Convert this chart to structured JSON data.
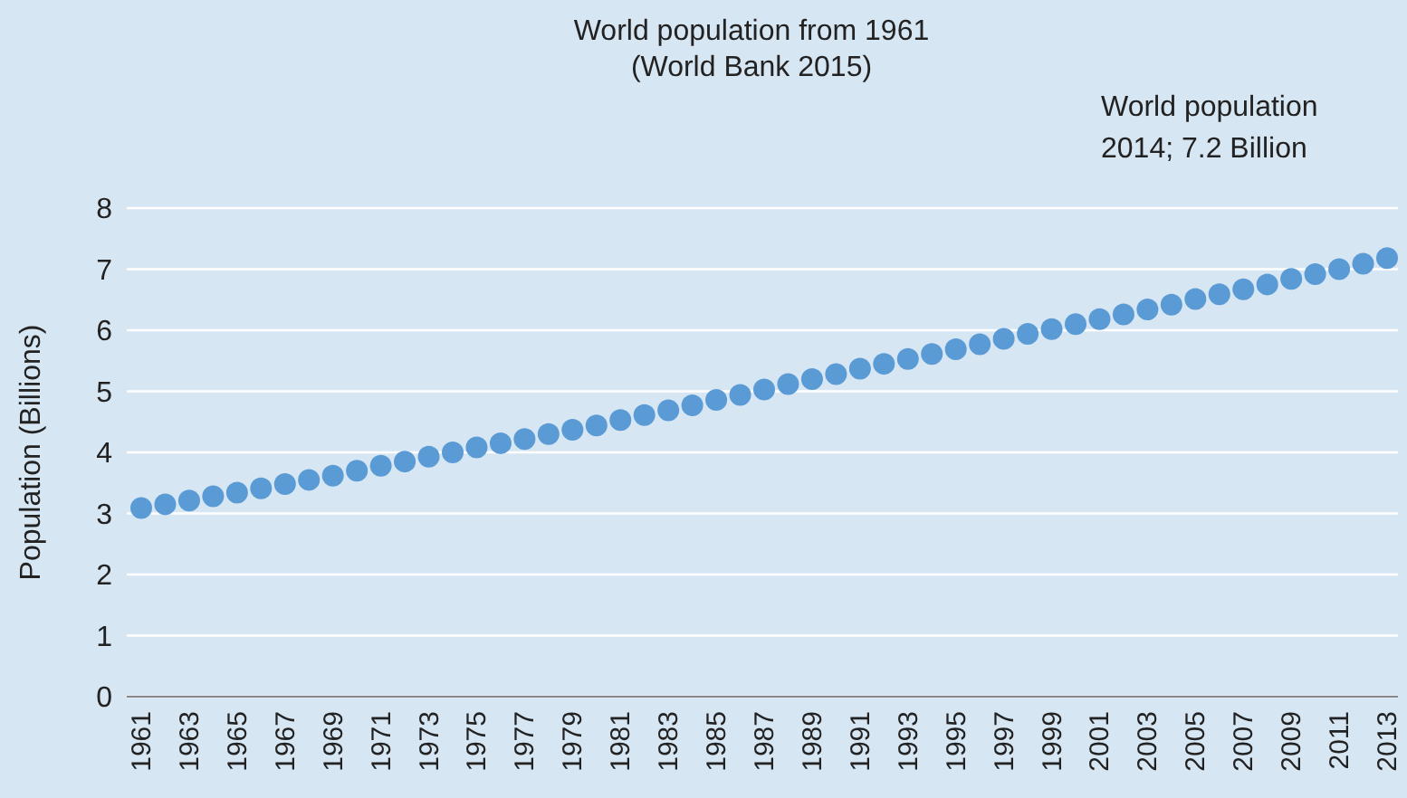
{
  "chart_data": {
    "type": "scatter",
    "title": "World population from 1961\n(World Bank 2015)",
    "ylabel": "Population (Billions)",
    "categories": [
      "1961",
      null,
      "1963",
      null,
      "1965",
      null,
      "1967",
      null,
      "1969",
      null,
      "1971",
      null,
      "1973",
      null,
      "1975",
      null,
      "1977",
      null,
      "1979",
      null,
      "1981",
      null,
      "1983",
      null,
      "1985",
      null,
      "1987",
      null,
      "1989",
      null,
      "1991",
      null,
      "1993",
      null,
      "1995",
      null,
      "1997",
      null,
      "1999",
      null,
      "2001",
      null,
      "2003",
      null,
      "2005",
      null,
      "2007",
      null,
      "2009",
      null,
      "2011",
      null,
      "2013"
    ],
    "series": [
      {
        "color": "#5b9bd5",
        "values": [
          3.09,
          3.15,
          3.21,
          3.28,
          3.34,
          3.41,
          3.48,
          3.55,
          3.62,
          3.7,
          3.78,
          3.85,
          3.93,
          4.0,
          4.08,
          4.15,
          4.22,
          4.3,
          4.37,
          4.44,
          4.53,
          4.61,
          4.69,
          4.77,
          4.86,
          4.94,
          5.03,
          5.12,
          5.2,
          5.28,
          5.37,
          5.45,
          5.53,
          5.61,
          5.69,
          5.77,
          5.86,
          5.94,
          6.02,
          6.1,
          6.18,
          6.26,
          6.34,
          6.42,
          6.51,
          6.59,
          6.67,
          6.75,
          6.84,
          6.92,
          7.0,
          7.09,
          7.18
        ]
      }
    ],
    "ylim": [
      0,
      8
    ],
    "yticks": [
      0,
      1,
      2,
      3,
      4,
      5,
      6,
      7,
      8
    ],
    "grid": "y",
    "marker": "circle",
    "annotations": [
      "World population\n2014; 7.2 Billion"
    ]
  }
}
